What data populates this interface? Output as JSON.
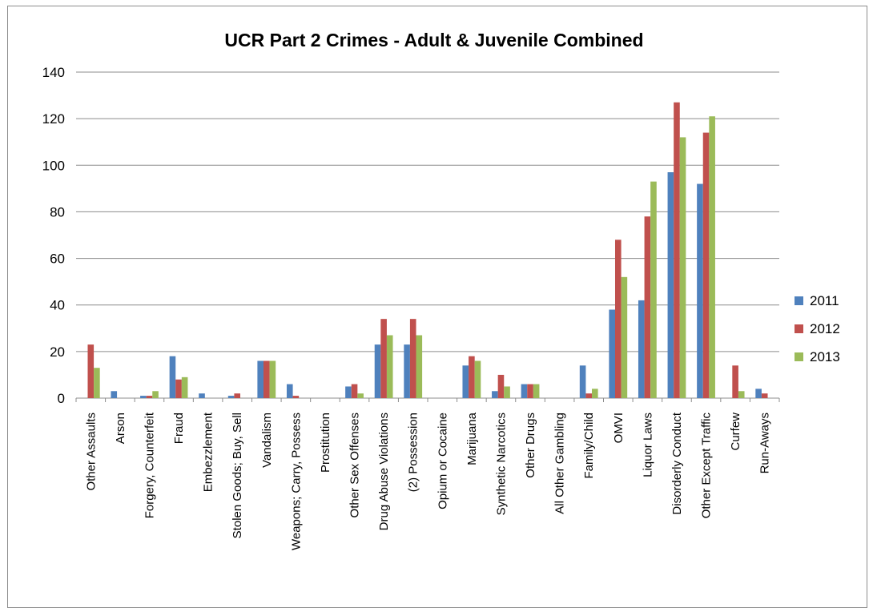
{
  "chart_data": {
    "type": "bar",
    "title": "UCR Part 2 Crimes - Adult & Juvenile Combined",
    "xlabel": "",
    "ylabel": "",
    "ylim": [
      0,
      140
    ],
    "yticks": [
      0,
      20,
      40,
      60,
      80,
      100,
      120,
      140
    ],
    "grid": true,
    "legend_position": "right",
    "categories": [
      "Other Assaults",
      "Arson",
      "Forgery, Counterfeit",
      "Fraud",
      "Embezzlement",
      "Stolen Goods; Buy, Sell",
      "Vandalism",
      "Weapons; Carry, Possess",
      "Prostitution",
      "Other Sex Offenses",
      "Drug Abuse Violations",
      "(2) Possession",
      "Opium or Cocaine",
      "Marijuana",
      "Synthetic Narcotics",
      "Other Drugs",
      "All Other Gambling",
      "Family/Child",
      "OMVI",
      "Liquor Laws",
      "Disorderly Conduct",
      "Other Except Traffic",
      "Curfew",
      "Run-Aways"
    ],
    "series": [
      {
        "name": "2011",
        "color": "#4f81bd",
        "values": [
          0,
          3,
          1,
          18,
          2,
          1,
          16,
          6,
          0,
          5,
          23,
          23,
          0,
          14,
          3,
          6,
          0,
          14,
          38,
          42,
          97,
          92,
          0,
          4
        ]
      },
      {
        "name": "2012",
        "color": "#c0504d",
        "values": [
          23,
          0,
          1,
          8,
          0,
          2,
          16,
          1,
          0,
          6,
          34,
          34,
          0,
          18,
          10,
          6,
          0,
          2,
          68,
          78,
          127,
          114,
          14,
          2
        ]
      },
      {
        "name": "2013",
        "color": "#9bbb59",
        "values": [
          13,
          0,
          3,
          9,
          0,
          0,
          16,
          0,
          0,
          2,
          27,
          27,
          0,
          16,
          5,
          6,
          0,
          4,
          52,
          93,
          112,
          121,
          3,
          0
        ]
      }
    ]
  }
}
